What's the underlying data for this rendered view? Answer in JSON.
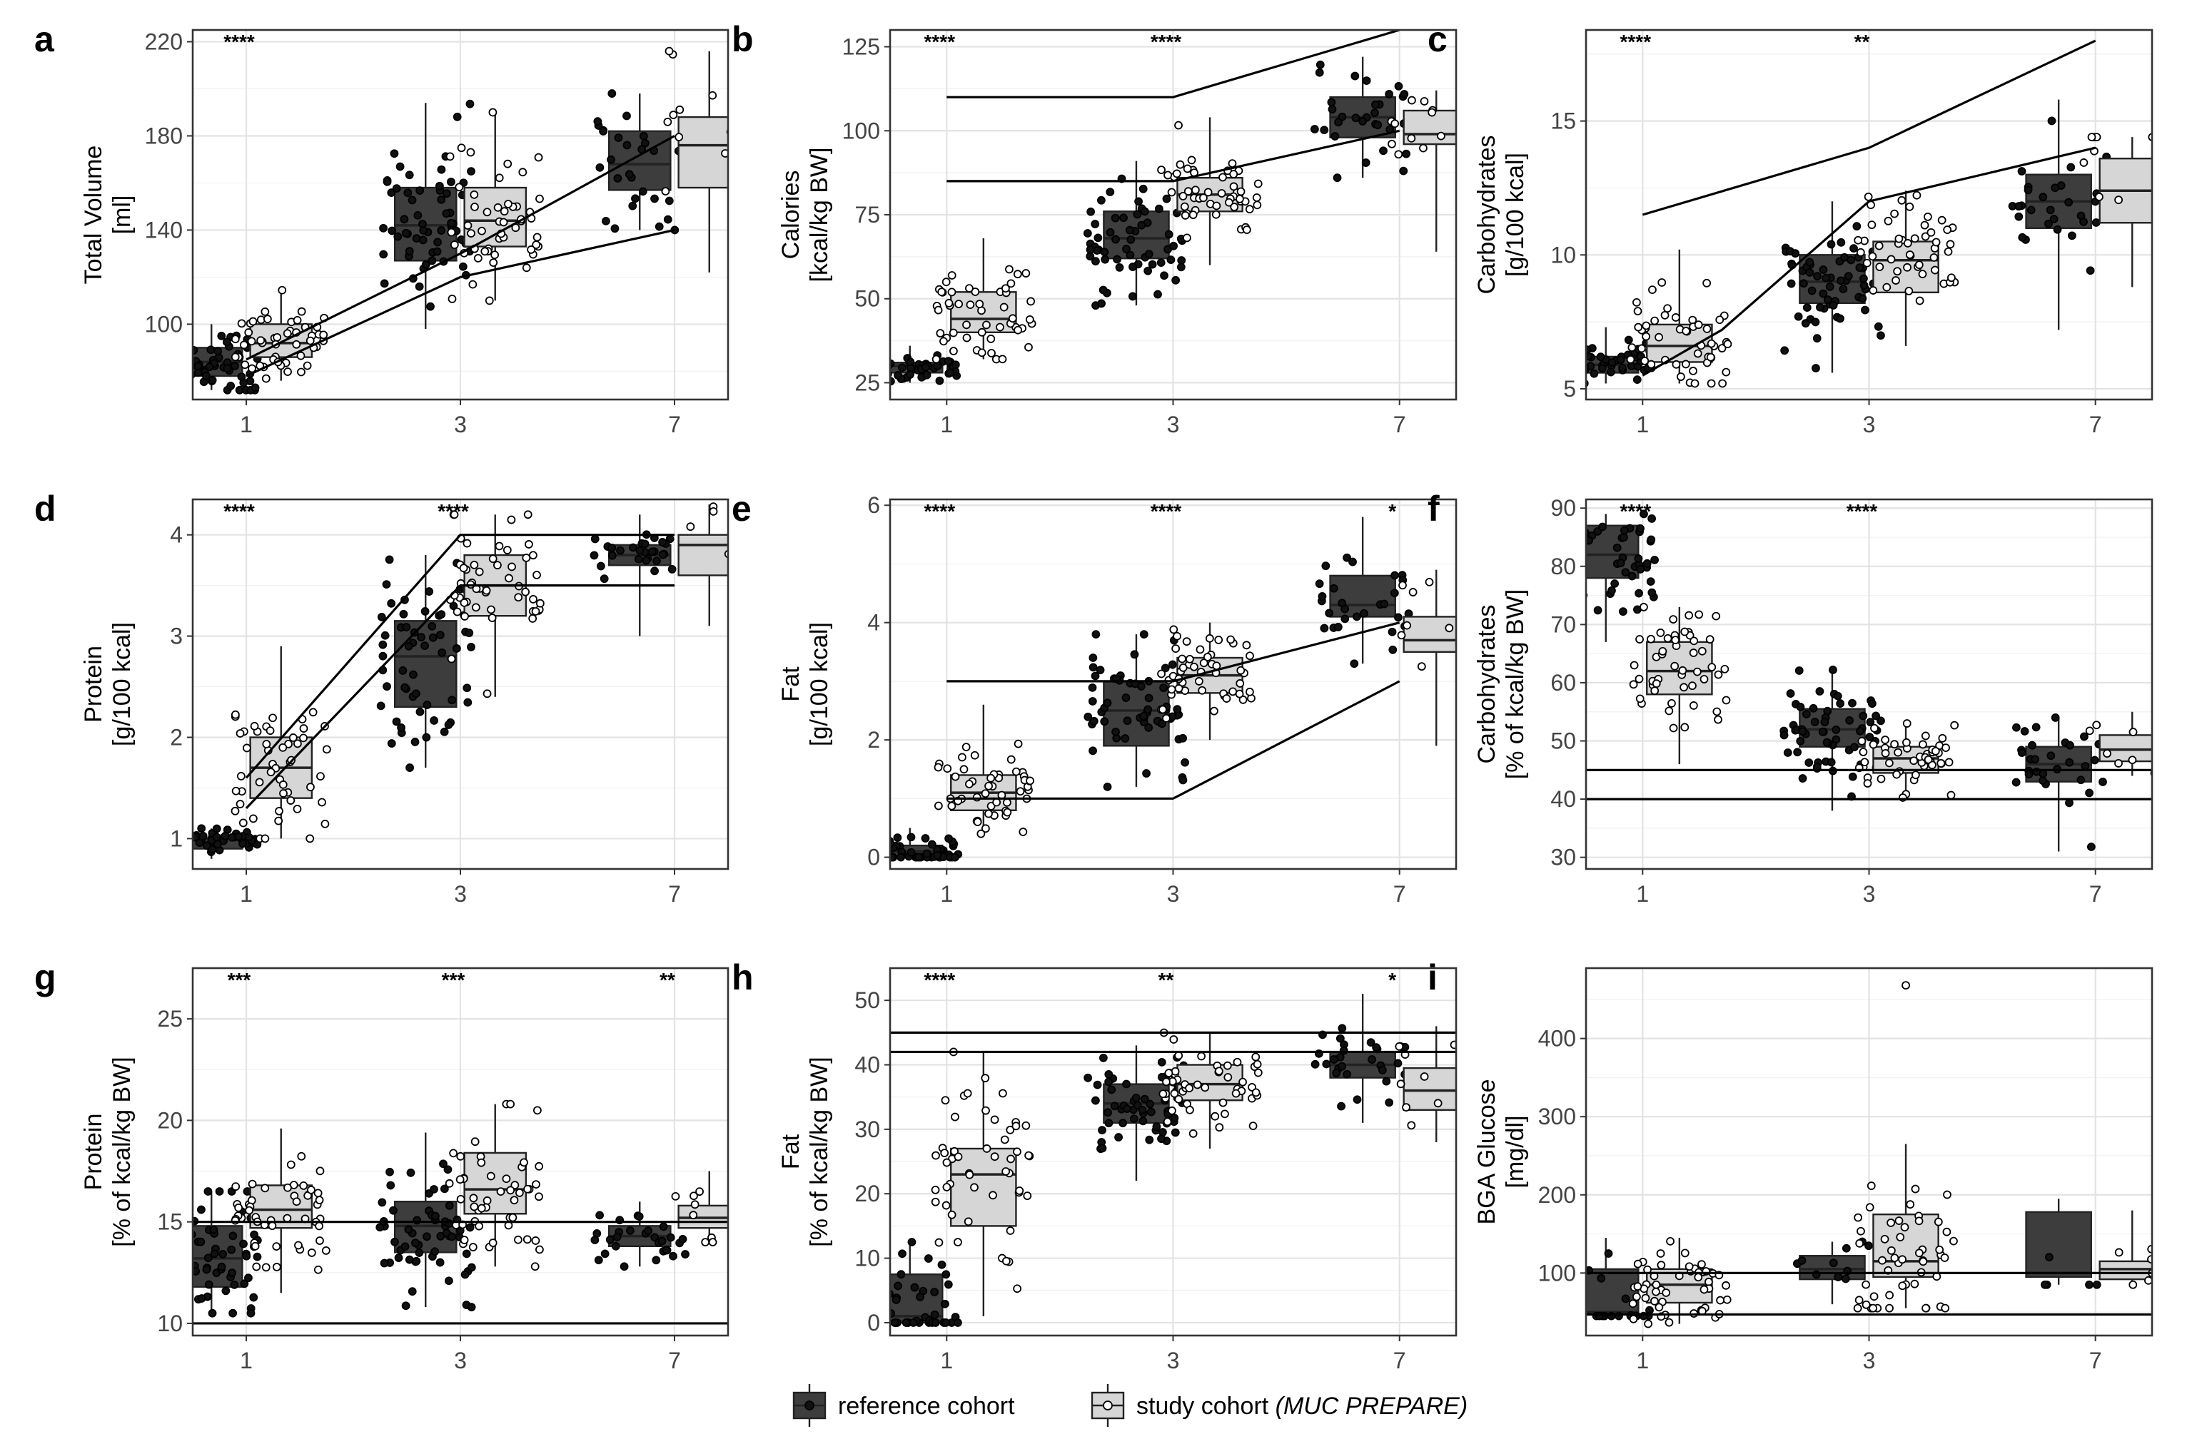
{
  "figure": {
    "legend": {
      "items": [
        {
          "label": "reference cohort",
          "color": "#3d3d3d",
          "point_fill": "#111111"
        },
        {
          "label": "study cohort ",
          "italic": "(MUC PREPARE)",
          "color": "#d6d6d6",
          "point_fill": "#ffffff"
        }
      ]
    },
    "colors": {
      "reference_box": "#3d3d3d",
      "study_box": "#d6d6d6",
      "line": "#000000",
      "grid": "#e8e8e8",
      "frame": "#333333"
    }
  },
  "chart_data": [
    {
      "panel": "a",
      "type": "box",
      "ylabel": [
        "Total Volume",
        "[ml]"
      ],
      "categories": [
        "1",
        "3",
        "7"
      ],
      "ylim": [
        68,
        225
      ],
      "yticks": [
        100,
        140,
        180,
        220
      ],
      "significance": [
        "****",
        "",
        ""
      ],
      "series": [
        {
          "name": "reference cohort",
          "boxes": [
            {
              "min": 72,
              "q1": 78,
              "median": 84,
              "q3": 90,
              "max": 100,
              "n": 60
            },
            {
              "min": 98,
              "q1": 127,
              "median": 142,
              "q3": 158,
              "max": 194,
              "n": 60
            },
            {
              "min": 140,
              "q1": 157,
              "median": 168,
              "q3": 182,
              "max": 198,
              "n": 30
            }
          ]
        },
        {
          "name": "study cohort (MUC PREPARE)",
          "boxes": [
            {
              "min": 76,
              "q1": 86,
              "median": 92,
              "q3": 100,
              "max": 116,
              "n": 50
            },
            {
              "min": 110,
              "q1": 133,
              "median": 144,
              "q3": 158,
              "max": 190,
              "n": 50
            },
            {
              "min": 122,
              "q1": 158,
              "median": 176,
              "q3": 188,
              "max": 216,
              "n": 12
            }
          ]
        }
      ],
      "reference_lines": [
        {
          "x": [
            "1",
            "3",
            "7"
          ],
          "y": [
            85,
            130,
            180
          ]
        },
        {
          "x": [
            "1",
            "3",
            "7"
          ],
          "y": [
            78,
            120,
            140
          ]
        }
      ],
      "hlines": []
    },
    {
      "panel": "b",
      "type": "box",
      "ylabel": [
        "Calories",
        "[kcal/kg BW]"
      ],
      "categories": [
        "1",
        "3",
        "7"
      ],
      "ylim": [
        20,
        130
      ],
      "yticks": [
        25,
        50,
        75,
        100,
        125
      ],
      "significance": [
        "****",
        "****",
        ""
      ],
      "series": [
        {
          "name": "reference cohort",
          "boxes": [
            {
              "min": 25,
              "q1": 28,
              "median": 30,
              "q3": 31,
              "max": 36,
              "n": 60
            },
            {
              "min": 48,
              "q1": 62,
              "median": 68,
              "q3": 76,
              "max": 91,
              "n": 60
            },
            {
              "min": 86,
              "q1": 98,
              "median": 104,
              "q3": 110,
              "max": 122,
              "n": 30
            }
          ]
        },
        {
          "name": "study cohort (MUC PREPARE)",
          "boxes": [
            {
              "min": 32,
              "q1": 40,
              "median": 44,
              "q3": 52,
              "max": 68,
              "n": 50
            },
            {
              "min": 60,
              "q1": 76,
              "median": 81,
              "q3": 86,
              "max": 104,
              "n": 50
            },
            {
              "min": 64,
              "q1": 96,
              "median": 99,
              "q3": 106,
              "max": 112,
              "n": 12
            }
          ]
        }
      ],
      "reference_lines": [
        {
          "x": [
            "1",
            "3",
            "7"
          ],
          "y": [
            110,
            110,
            130
          ]
        },
        {
          "x": [
            "1",
            "3",
            "7"
          ],
          "y": [
            85,
            85,
            100
          ]
        }
      ],
      "hlines": []
    },
    {
      "panel": "c",
      "type": "box",
      "ylabel": [
        "Carbohydrates",
        "[g/100 kcal]"
      ],
      "categories": [
        "1",
        "3",
        "7"
      ],
      "ylim": [
        4.6,
        18.4
      ],
      "yticks": [
        5,
        10,
        15
      ],
      "significance": [
        "****",
        "**",
        ""
      ],
      "series": [
        {
          "name": "reference cohort",
          "boxes": [
            {
              "min": 5.2,
              "q1": 5.6,
              "median": 5.9,
              "q3": 6.2,
              "max": 7.3,
              "n": 60
            },
            {
              "min": 5.6,
              "q1": 8.2,
              "median": 9.0,
              "q3": 10.0,
              "max": 12.0,
              "n": 60
            },
            {
              "min": 7.2,
              "q1": 11.0,
              "median": 12.0,
              "q3": 13.0,
              "max": 15.8,
              "n": 30
            }
          ]
        },
        {
          "name": "study cohort (MUC PREPARE)",
          "boxes": [
            {
              "min": 5.2,
              "q1": 6.0,
              "median": 6.6,
              "q3": 7.4,
              "max": 10.2,
              "n": 50
            },
            {
              "min": 6.6,
              "q1": 8.6,
              "median": 9.8,
              "q3": 10.5,
              "max": 12.4,
              "n": 50
            },
            {
              "min": 8.8,
              "q1": 11.2,
              "median": 12.4,
              "q3": 13.6,
              "max": 14.4,
              "n": 12
            }
          ]
        }
      ],
      "reference_lines": [
        {
          "x": [
            "1",
            "3",
            "7"
          ],
          "y": [
            11.5,
            14.0,
            18.0
          ]
        },
        {
          "x": [
            "1",
            "1.7",
            "3",
            "7"
          ],
          "y": [
            5.5,
            7.2,
            12.0,
            14.0
          ]
        }
      ],
      "hlines": []
    },
    {
      "panel": "d",
      "type": "box",
      "ylabel": [
        "Protein",
        "[g/100 kcal]"
      ],
      "categories": [
        "1",
        "3",
        "7"
      ],
      "ylim": [
        0.7,
        4.35
      ],
      "yticks": [
        1,
        2,
        3,
        4
      ],
      "significance": [
        "****",
        "****",
        ""
      ],
      "series": [
        {
          "name": "reference cohort",
          "boxes": [
            {
              "min": 0.8,
              "q1": 0.9,
              "median": 1.0,
              "q3": 1.0,
              "max": 1.1,
              "n": 60
            },
            {
              "min": 1.7,
              "q1": 2.3,
              "median": 2.8,
              "q3": 3.15,
              "max": 3.8,
              "n": 60
            },
            {
              "min": 3.0,
              "q1": 3.7,
              "median": 3.8,
              "q3": 3.9,
              "max": 4.2,
              "n": 30
            }
          ]
        },
        {
          "name": "study cohort (MUC PREPARE)",
          "boxes": [
            {
              "min": 1.0,
              "q1": 1.4,
              "median": 1.7,
              "q3": 2.0,
              "max": 2.9,
              "n": 50
            },
            {
              "min": 2.4,
              "q1": 3.2,
              "median": 3.5,
              "q3": 3.8,
              "max": 4.2,
              "n": 50
            },
            {
              "min": 3.1,
              "q1": 3.6,
              "median": 3.9,
              "q3": 4.0,
              "max": 4.3,
              "n": 12
            }
          ]
        }
      ],
      "reference_lines": [
        {
          "x": [
            "1",
            "3",
            "7"
          ],
          "y": [
            1.6,
            4.0,
            4.0
          ]
        },
        {
          "x": [
            "1",
            "3",
            "7"
          ],
          "y": [
            1.3,
            3.5,
            3.5
          ]
        }
      ],
      "hlines": []
    },
    {
      "panel": "e",
      "type": "box",
      "ylabel": [
        "Fat",
        "[g/100 kcal]"
      ],
      "categories": [
        "1",
        "3",
        "7"
      ],
      "ylim": [
        -0.2,
        6.1
      ],
      "yticks": [
        0,
        2,
        4,
        6
      ],
      "significance": [
        "****",
        "****",
        "*"
      ],
      "series": [
        {
          "name": "reference cohort",
          "boxes": [
            {
              "min": 0.0,
              "q1": 0.0,
              "median": 0.1,
              "q3": 0.2,
              "max": 0.5,
              "n": 60
            },
            {
              "min": 1.2,
              "q1": 1.9,
              "median": 2.5,
              "q3": 3.0,
              "max": 3.8,
              "n": 60
            },
            {
              "min": 3.3,
              "q1": 4.1,
              "median": 4.3,
              "q3": 4.8,
              "max": 5.8,
              "n": 30
            }
          ]
        },
        {
          "name": "study cohort (MUC PREPARE)",
          "boxes": [
            {
              "min": 0.4,
              "q1": 0.8,
              "median": 1.1,
              "q3": 1.4,
              "max": 2.6,
              "n": 50
            },
            {
              "min": 2.0,
              "q1": 2.8,
              "median": 3.1,
              "q3": 3.4,
              "max": 4.0,
              "n": 50
            },
            {
              "min": 1.9,
              "q1": 3.5,
              "median": 3.7,
              "q3": 4.1,
              "max": 4.9,
              "n": 12
            }
          ]
        }
      ],
      "reference_lines": [
        {
          "x": [
            "1",
            "3",
            "7"
          ],
          "y": [
            3.0,
            3.0,
            4.0
          ]
        },
        {
          "x": [
            "1",
            "3",
            "7"
          ],
          "y": [
            1.0,
            1.0,
            3.0
          ]
        }
      ],
      "hlines": []
    },
    {
      "panel": "f",
      "type": "box",
      "ylabel": [
        "Carbohydrates",
        "[% of kcal/kg BW]"
      ],
      "categories": [
        "1",
        "3",
        "7"
      ],
      "ylim": [
        28,
        91.5
      ],
      "yticks": [
        30,
        40,
        50,
        60,
        70,
        80,
        90
      ],
      "significance": [
        "****",
        "****",
        ""
      ],
      "series": [
        {
          "name": "reference cohort",
          "boxes": [
            {
              "min": 67,
              "q1": 78,
              "median": 82,
              "q3": 87,
              "max": 89,
              "n": 60
            },
            {
              "min": 38,
              "q1": 49,
              "median": 52,
              "q3": 55.5,
              "max": 62.5,
              "n": 60
            },
            {
              "min": 31,
              "q1": 43,
              "median": 46,
              "q3": 49,
              "max": 54,
              "n": 30
            }
          ]
        },
        {
          "name": "study cohort (MUC PREPARE)",
          "boxes": [
            {
              "min": 46,
              "q1": 58,
              "median": 62,
              "q3": 67,
              "max": 73,
              "n": 50
            },
            {
              "min": 40,
              "q1": 44.5,
              "median": 47,
              "q3": 49,
              "max": 53,
              "n": 50
            },
            {
              "min": 44,
              "q1": 46.5,
              "median": 48.5,
              "q3": 51,
              "max": 55,
              "n": 12
            }
          ]
        }
      ],
      "reference_lines": [],
      "hlines": [
        45,
        40
      ]
    },
    {
      "panel": "g",
      "type": "box",
      "ylabel": [
        "Protein",
        "[% of kcal/kg BW]"
      ],
      "categories": [
        "1",
        "3",
        "7"
      ],
      "ylim": [
        9.4,
        27.5
      ],
      "yticks": [
        10,
        15,
        20,
        25
      ],
      "significance": [
        "***",
        "***",
        "**"
      ],
      "series": [
        {
          "name": "reference cohort",
          "boxes": [
            {
              "min": 10.5,
              "q1": 11.8,
              "median": 13.2,
              "q3": 14.8,
              "max": 16.5,
              "n": 60
            },
            {
              "min": 10.8,
              "q1": 13.5,
              "median": 14.8,
              "q3": 16.0,
              "max": 19.4,
              "n": 60
            },
            {
              "min": 12.8,
              "q1": 13.8,
              "median": 14.3,
              "q3": 14.8,
              "max": 16.0,
              "n": 30
            }
          ]
        },
        {
          "name": "study cohort (MUC PREPARE)",
          "boxes": [
            {
              "min": 11.5,
              "q1": 14.7,
              "median": 15.6,
              "q3": 16.8,
              "max": 19.6,
              "n": 50
            },
            {
              "min": 12.8,
              "q1": 15.4,
              "median": 16.6,
              "q3": 18.4,
              "max": 20.8,
              "n": 50
            },
            {
              "min": 14.0,
              "q1": 14.7,
              "median": 15.2,
              "q3": 15.8,
              "max": 17.5,
              "n": 12
            }
          ]
        }
      ],
      "reference_lines": [],
      "hlines": [
        15,
        10
      ]
    },
    {
      "panel": "h",
      "type": "box",
      "ylabel": [
        "Fat",
        "[% of kcal/kg BW]"
      ],
      "categories": [
        "1",
        "3",
        "7"
      ],
      "ylim": [
        -2,
        55
      ],
      "yticks": [
        0,
        10,
        20,
        30,
        40,
        50
      ],
      "significance": [
        "****",
        "**",
        "*"
      ],
      "series": [
        {
          "name": "reference cohort",
          "boxes": [
            {
              "min": 0,
              "q1": 0,
              "median": 1,
              "q3": 7.5,
              "max": 12.5,
              "n": 60
            },
            {
              "min": 22,
              "q1": 31,
              "median": 34,
              "q3": 37,
              "max": 43,
              "n": 60
            },
            {
              "min": 31,
              "q1": 38,
              "median": 40,
              "q3": 42,
              "max": 51,
              "n": 30
            }
          ]
        },
        {
          "name": "study cohort (MUC PREPARE)",
          "boxes": [
            {
              "min": 1,
              "q1": 15,
              "median": 23,
              "q3": 27,
              "max": 42,
              "n": 50
            },
            {
              "min": 27,
              "q1": 34.5,
              "median": 37,
              "q3": 40,
              "max": 45,
              "n": 50
            },
            {
              "min": 28,
              "q1": 33,
              "median": 36,
              "q3": 39.5,
              "max": 46,
              "n": 12
            }
          ]
        }
      ],
      "reference_lines": [],
      "hlines": [
        45,
        42
      ]
    },
    {
      "panel": "i",
      "type": "box",
      "ylabel": [
        "BGA Glucose",
        "[mg/dl]"
      ],
      "categories": [
        "1",
        "3",
        "7"
      ],
      "ylim": [
        20,
        490
      ],
      "yticks": [
        100,
        200,
        300,
        400
      ],
      "significance": [
        "",
        "",
        ""
      ],
      "series": [
        {
          "name": "reference cohort",
          "boxes": [
            {
              "min": 45,
              "q1": 48,
              "median": 50,
              "q3": 105,
              "max": 145,
              "n": 25
            },
            {
              "min": 60,
              "q1": 92,
              "median": 105,
              "q3": 122,
              "max": 140,
              "n": 10
            },
            {
              "min": 85,
              "q1": 95,
              "median": 100,
              "q3": 178,
              "max": 195,
              "n": 5
            }
          ]
        },
        {
          "name": "study cohort (MUC PREPARE)",
          "boxes": [
            {
              "min": 35,
              "q1": 62,
              "median": 85,
              "q3": 105,
              "max": 145,
              "n": 50
            },
            {
              "min": 55,
              "q1": 95,
              "median": 115,
              "q3": 175,
              "max": 265,
              "n": 50
            },
            {
              "min": 85,
              "q1": 92,
              "median": 105,
              "q3": 115,
              "max": 180,
              "n": 12
            }
          ]
        }
      ],
      "reference_lines": [],
      "hlines": [
        100,
        47
      ],
      "outliers": [
        {
          "category": "3",
          "series": 1,
          "value": 468
        }
      ]
    }
  ]
}
